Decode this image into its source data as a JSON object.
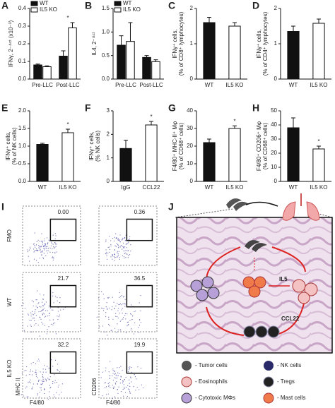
{
  "chart_data": [
    {
      "type": "grouped-bar",
      "panel": "A",
      "ylabel": [
        "IFNγ, 2⁻ᐞᶜᵗ (x10⁻³)"
      ],
      "categories": [
        "Pre-LLC",
        "Post-LLC"
      ],
      "series": [
        {
          "name": "WT",
          "color": "#111111",
          "values": [
            0.08,
            0.13
          ],
          "errors": [
            0.005,
            0.03
          ]
        },
        {
          "name": "IL5 KO",
          "color": "#ffffff",
          "values": [
            0.07,
            0.29
          ],
          "errors": [
            0.005,
            0.03
          ]
        }
      ],
      "ylim": [
        0,
        0.4
      ],
      "yticks": [
        {
          "value": 0,
          "label": "0.0"
        },
        0.1,
        0.2,
        0.3,
        0.4
      ],
      "annotation": "*",
      "annotation_category": "Post-LLC"
    },
    {
      "type": "grouped-bar",
      "panel": "B",
      "ylabel": [
        "IL4, 2⁻ᐞᶜᵗ"
      ],
      "categories": [
        "Pre-LLC",
        "Post-LLC"
      ],
      "series": [
        {
          "name": "WT",
          "color": "#111111",
          "values": [
            0.72,
            0.46
          ],
          "errors": [
            0.2,
            0.04
          ]
        },
        {
          "name": "IL5 KO",
          "color": "#ffffff",
          "values": [
            0.8,
            0.37
          ],
          "errors": [
            0.4,
            0.04
          ]
        }
      ],
      "ylim": [
        0,
        1.5
      ],
      "yticks": [
        {
          "value": 0,
          "label": "0.0"
        },
        0.5,
        {
          "value": 1,
          "label": "1.0"
        },
        1.5
      ]
    },
    {
      "type": "bar",
      "panel": "C",
      "ylabel": [
        "IFNγ⁺ cells,",
        "(% of CD8⁺ lymphocytes)"
      ],
      "categories": [
        "WT",
        "IL5 KO"
      ],
      "values": [
        1.6,
        1.5
      ],
      "errors": [
        0.15,
        0.1
      ],
      "colors": [
        "#111111",
        "#ffffff"
      ],
      "ylim": [
        0,
        2
      ],
      "yticks": [
        0,
        1,
        2
      ]
    },
    {
      "type": "bar",
      "panel": "D",
      "ylabel": [
        "IFNγ⁺ cells,",
        "(% of CD4⁺ lymphocytes)"
      ],
      "categories": [
        "WT",
        "IL5 KO"
      ],
      "values": [
        1.35,
        1.58
      ],
      "errors": [
        0.15,
        0.12
      ],
      "colors": [
        "#111111",
        "#ffffff"
      ],
      "ylim": [
        0,
        2
      ],
      "yticks": [
        0,
        1,
        2
      ]
    },
    {
      "type": "bar",
      "panel": "E",
      "ylabel": [
        "IFNγ⁺ cells,",
        "(% of NK cells)"
      ],
      "categories": [
        "WT",
        "IL5 KO"
      ],
      "values": [
        1.05,
        1.38
      ],
      "errors": [
        0.03,
        0.1
      ],
      "colors": [
        "#111111",
        "#ffffff"
      ],
      "ylim": [
        0,
        2
      ],
      "yticks": [
        {
          "value": 0,
          "label": "0.0"
        },
        0.5,
        {
          "value": 1,
          "label": "1.0"
        },
        1.5,
        {
          "value": 2,
          "label": "2.0"
        }
      ],
      "annotation": "*",
      "annotation_category": "IL5 KO"
    },
    {
      "type": "bar",
      "panel": "F",
      "ylabel": [
        "IFNγ⁺ cells,",
        "(% NK cells)"
      ],
      "categories": [
        "IgG",
        "CCL22"
      ],
      "values": [
        1.4,
        2.4
      ],
      "errors": [
        0.35,
        0.15
      ],
      "colors": [
        "#111111",
        "#ffffff"
      ],
      "ylim": [
        0,
        3
      ],
      "yticks": [
        0,
        1,
        2,
        3
      ],
      "annotation": "*",
      "annotation_category": "CCL22"
    },
    {
      "type": "bar",
      "panel": "G",
      "ylabel": [
        "F4/80⁺ MHC-II⁺ Mφ",
        "(% of CD68⁺ cells)"
      ],
      "categories": [
        "WT",
        "IL5 KO"
      ],
      "values": [
        22,
        30
      ],
      "errors": [
        2,
        1.5
      ],
      "colors": [
        "#111111",
        "#ffffff"
      ],
      "ylim": [
        0,
        40
      ],
      "yticks": [
        0,
        10,
        20,
        30,
        40
      ],
      "annotation": "*",
      "annotation_category": "IL5 KO"
    },
    {
      "type": "bar",
      "panel": "H",
      "ylabel": [
        "F4/80⁺ CD206⁺ Mφ",
        "(% of CD68⁺ cells)"
      ],
      "categories": [
        "WT",
        "IL5 KO"
      ],
      "values": [
        38,
        23
      ],
      "errors": [
        7,
        2
      ],
      "colors": [
        "#111111",
        "#ffffff"
      ],
      "ylim": [
        0,
        50
      ],
      "yticks": [
        0,
        10,
        20,
        30,
        40,
        50
      ],
      "annotation": "*",
      "annotation_category": "IL5 KO"
    }
  ],
  "panel_i": {
    "panel": "I",
    "rows": [
      "FMO",
      "WT",
      "IL5 KO"
    ],
    "gates": [
      [
        "0.00",
        "0.36"
      ],
      [
        "21.7",
        "36.5"
      ],
      [
        "32.2",
        "19.9"
      ]
    ],
    "y_labels": [
      "MHC II",
      "CD206"
    ],
    "x_labels": [
      "F4/80",
      "F4/80"
    ]
  },
  "panel_j": {
    "panel": "J",
    "labels": [
      "IL5",
      "CCL22"
    ],
    "legend": [
      "- Tumor cells",
      "- Eosinophils",
      "- Cytotoxic MΦs",
      "- NK cells",
      "- Tregs",
      "- Mast cells"
    ]
  }
}
